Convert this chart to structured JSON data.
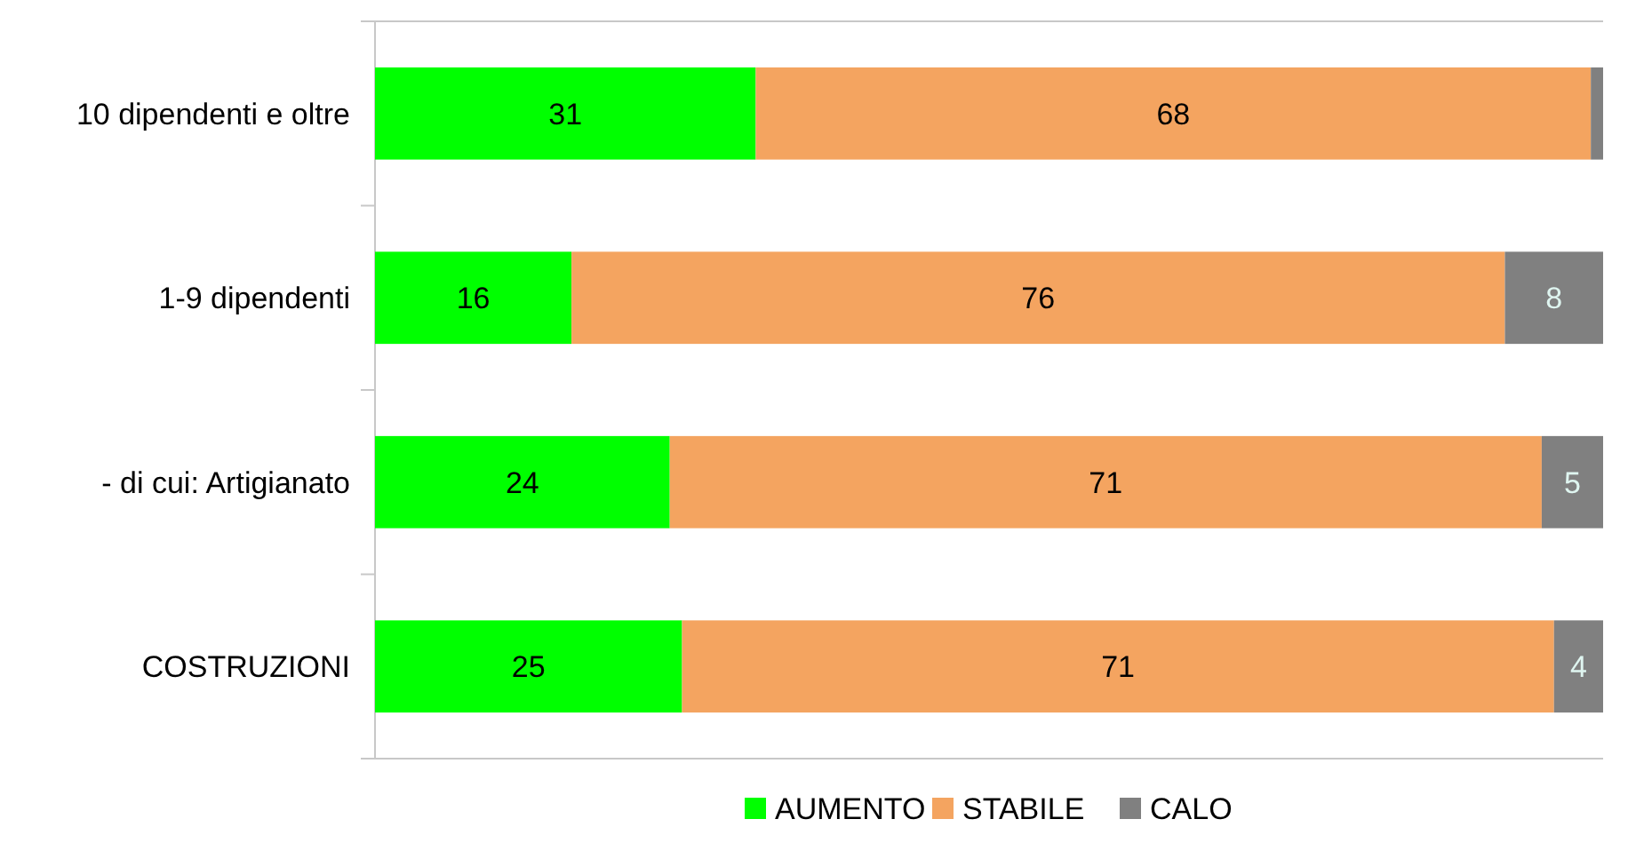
{
  "chart_data": {
    "type": "bar",
    "orientation": "horizontal",
    "stacked": true,
    "categories": [
      "10 dipendenti e oltre",
      "1-9 dipendenti",
      "- di cui: Artigianato",
      "COSTRUZIONI"
    ],
    "series": [
      {
        "name": "AUMENTO",
        "color": "#00ff00",
        "values": [
          31,
          16,
          24,
          25
        ],
        "value_labels": [
          "31",
          "16",
          "24",
          "25"
        ]
      },
      {
        "name": "STABILE",
        "color": "#f4a460",
        "values": [
          68,
          76,
          71,
          71
        ],
        "value_labels": [
          "68",
          "76",
          "71",
          "71"
        ]
      },
      {
        "name": "CALO",
        "color": "#808080",
        "values": [
          1,
          8,
          5,
          4
        ],
        "value_labels": [
          null,
          "8",
          "5",
          "4"
        ]
      }
    ],
    "xlim": [
      0,
      100
    ],
    "tick_labels": "y",
    "legend": "bottom"
  }
}
